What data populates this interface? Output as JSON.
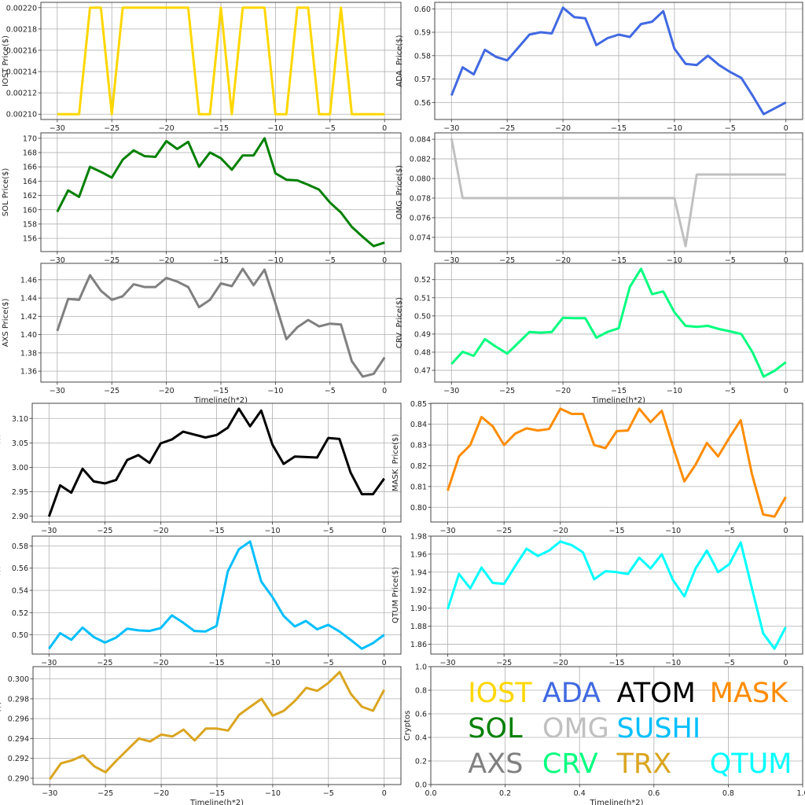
{
  "chart_data": [
    {
      "type": "line",
      "name": "IOST",
      "color": "#FFD700",
      "ylabel": "IOST Price($)",
      "xlabel": "",
      "x": [
        -30,
        -29,
        -28,
        -27,
        -26,
        -25,
        -24,
        -23,
        -22,
        -21,
        -20,
        -19,
        -18,
        -17,
        -16,
        -15,
        -14,
        -13,
        -12,
        -11,
        -10,
        -9,
        -8,
        -7,
        -6,
        -5,
        -4,
        -3,
        -2,
        -1,
        0
      ],
      "values": [
        0.0021,
        0.0021,
        0.0021,
        0.0022,
        0.0022,
        0.0021,
        0.0022,
        0.0022,
        0.0022,
        0.0022,
        0.0022,
        0.0022,
        0.0022,
        0.0021,
        0.0021,
        0.0022,
        0.0021,
        0.0022,
        0.0022,
        0.0022,
        0.0021,
        0.0021,
        0.0022,
        0.0022,
        0.0021,
        0.0021,
        0.0022,
        0.0021,
        0.0021,
        0.0021,
        0.0021
      ],
      "yticks": [
        0.0021,
        0.00212,
        0.00214,
        0.00216,
        0.00218,
        0.0022
      ],
      "ytick_labels": [
        "0.00210",
        "0.00212",
        "0.00214",
        "0.00216",
        "0.00218",
        "0.00220"
      ],
      "xticks": [
        -30,
        -25,
        -20,
        -15,
        -10,
        -5,
        0
      ],
      "xtick_labels": [
        "−30",
        "−25",
        "−20",
        "−15",
        "−10",
        "−5",
        "0"
      ],
      "grid": true
    },
    {
      "type": "line",
      "name": "ADA",
      "color": "#4169E1",
      "ylabel": "ADA  Price($)",
      "xlabel": "",
      "x": [
        -30,
        -29,
        -28,
        -27,
        -26,
        -25,
        -24,
        -23,
        -22,
        -21,
        -20,
        -19,
        -18,
        -17,
        -16,
        -15,
        -14,
        -13,
        -12,
        -11,
        -10,
        -9,
        -8,
        -7,
        -6,
        -5,
        -4,
        -3,
        -2,
        -1,
        0
      ],
      "values": [
        0.563,
        0.575,
        0.572,
        0.5825,
        0.5795,
        0.578,
        0.5835,
        0.589,
        0.59,
        0.5895,
        0.6005,
        0.5965,
        0.596,
        0.5845,
        0.5875,
        0.589,
        0.588,
        0.5935,
        0.5945,
        0.599,
        0.583,
        0.5765,
        0.576,
        0.58,
        0.576,
        0.573,
        0.5705,
        0.563,
        0.555,
        0.5575,
        0.56
      ],
      "yticks": [
        0.56,
        0.57,
        0.58,
        0.59,
        0.6
      ],
      "ytick_labels": [
        "0.56",
        "0.57",
        "0.58",
        "0.59",
        "0.60"
      ],
      "xticks": [
        -30,
        -25,
        -20,
        -15,
        -10,
        -5,
        0
      ],
      "xtick_labels": [
        "−30",
        "−25",
        "−20",
        "−15",
        "−10",
        "−5",
        "0"
      ],
      "grid": true
    },
    {
      "type": "line",
      "name": "SOL",
      "color": "#008000",
      "ylabel": "SOL Price($)",
      "xlabel": "",
      "x": [
        -30,
        -29,
        -28,
        -27,
        -26,
        -25,
        -24,
        -23,
        -22,
        -21,
        -20,
        -19,
        -18,
        -17,
        -16,
        -15,
        -14,
        -13,
        -12,
        -11,
        -10,
        -9,
        -8,
        -7,
        -6,
        -5,
        -4,
        -3,
        -2,
        -1,
        0
      ],
      "values": [
        159.7,
        162.7,
        161.8,
        166,
        165.3,
        164.5,
        167,
        168.3,
        167.5,
        167.4,
        169.6,
        168.5,
        169.5,
        166,
        168,
        167.2,
        165.6,
        167.6,
        167.6,
        170,
        165.1,
        164.2,
        164.1,
        163.5,
        162.8,
        161,
        159.6,
        157.6,
        156.2,
        154.9,
        155.4
      ],
      "yticks": [
        156,
        158,
        160,
        162,
        164,
        166,
        168,
        170
      ],
      "ytick_labels": [
        "156",
        "158",
        "160",
        "162",
        "164",
        "166",
        "168",
        "170"
      ],
      "xticks": [
        -30,
        -25,
        -20,
        -15,
        -10,
        -5,
        0
      ],
      "xtick_labels": [
        "−30",
        "−25",
        "−20",
        "−15",
        "−10",
        "−5",
        "0"
      ],
      "grid": true
    },
    {
      "type": "line",
      "name": "OMG",
      "color": "#C0C0C0",
      "ylabel": "OMG  Price($)",
      "xlabel": "",
      "x": [
        -30,
        -29,
        -28,
        -27,
        -26,
        -25,
        -24,
        -23,
        -22,
        -21,
        -20,
        -19,
        -18,
        -17,
        -16,
        -15,
        -14,
        -13,
        -12,
        -11,
        -10,
        -9,
        -8,
        -7,
        -6,
        -5,
        -4,
        -3,
        -2,
        -1,
        0
      ],
      "values": [
        0.0841,
        0.078,
        0.078,
        0.078,
        0.078,
        0.078,
        0.078,
        0.078,
        0.078,
        0.078,
        0.078,
        0.078,
        0.078,
        0.078,
        0.078,
        0.078,
        0.078,
        0.078,
        0.078,
        0.078,
        0.078,
        0.0731,
        0.0804,
        0.0804,
        0.0804,
        0.0804,
        0.0804,
        0.0804,
        0.0804,
        0.0804,
        0.0804
      ],
      "yticks": [
        0.074,
        0.076,
        0.078,
        0.08,
        0.082,
        0.084
      ],
      "ytick_labels": [
        "0.074",
        "0.076",
        "0.078",
        "0.080",
        "0.082",
        "0.084"
      ],
      "xticks": [
        -30,
        -25,
        -20,
        -15,
        -10,
        -5,
        0
      ],
      "xtick_labels": [
        "−30",
        "−25",
        "−20",
        "−15",
        "−10",
        "−5",
        "0"
      ],
      "grid": true
    },
    {
      "type": "line",
      "name": "AXS",
      "color": "#808080",
      "ylabel": "AXS Price($)",
      "xlabel": "Timeline(h*2)",
      "x": [
        -30,
        -29,
        -28,
        -27,
        -26,
        -25,
        -24,
        -23,
        -22,
        -21,
        -20,
        -19,
        -18,
        -17,
        -16,
        -15,
        -14,
        -13,
        -12,
        -11,
        -10,
        -9,
        -8,
        -7,
        -6,
        -5,
        -4,
        -3,
        -2,
        -1,
        0
      ],
      "values": [
        1.404,
        1.439,
        1.438,
        1.465,
        1.448,
        1.438,
        1.442,
        1.455,
        1.452,
        1.452,
        1.462,
        1.458,
        1.452,
        1.43,
        1.438,
        1.456,
        1.453,
        1.472,
        1.454,
        1.471,
        1.434,
        1.395,
        1.408,
        1.416,
        1.409,
        1.412,
        1.411,
        1.371,
        1.354,
        1.357,
        1.375
      ],
      "yticks": [
        1.36,
        1.38,
        1.4,
        1.42,
        1.44,
        1.46
      ],
      "ytick_labels": [
        "1.36",
        "1.38",
        "1.40",
        "1.42",
        "1.44",
        "1.46"
      ],
      "xticks": [
        -30,
        -25,
        -20,
        -15,
        -10,
        -5,
        0
      ],
      "xtick_labels": [
        "−30",
        "−25",
        "−20",
        "−15",
        "−10",
        "−5",
        "0"
      ],
      "grid": true
    },
    {
      "type": "line",
      "name": "CRV",
      "color": "#00FF7F",
      "ylabel": "CRV  Price($)",
      "xlabel": "Timeline(h*2)",
      "x": [
        -30,
        -29,
        -28,
        -27,
        -26,
        -25,
        -24,
        -23,
        -22,
        -21,
        -20,
        -19,
        -18,
        -17,
        -16,
        -15,
        -14,
        -13,
        -12,
        -11,
        -10,
        -9,
        -8,
        -7,
        -6,
        -5,
        -4,
        -3,
        -2,
        -1,
        0
      ],
      "values": [
        0.4735,
        0.4802,
        0.478,
        0.4872,
        0.483,
        0.4792,
        0.4852,
        0.4912,
        0.4908,
        0.4912,
        0.499,
        0.4987,
        0.4988,
        0.488,
        0.4912,
        0.4932,
        0.516,
        0.526,
        0.512,
        0.5135,
        0.502,
        0.4945,
        0.494,
        0.4945,
        0.4928,
        0.4915,
        0.49,
        0.48,
        0.4665,
        0.4698,
        0.4745
      ],
      "yticks": [
        0.47,
        0.48,
        0.49,
        0.5,
        0.51,
        0.52
      ],
      "ytick_labels": [
        "0.47",
        "0.48",
        "0.49",
        "0.50",
        "0.51",
        "0.52"
      ],
      "xticks": [
        -30,
        -25,
        -20,
        -15,
        -10,
        -5,
        0
      ],
      "xtick_labels": [
        "−30",
        "−25",
        "−20",
        "−15",
        "−10",
        "−5",
        "0"
      ],
      "grid": true
    },
    {
      "type": "line",
      "name": "ATOM",
      "color": "#000000",
      "ylabel": "ATOM  Price($)",
      "xlabel": "",
      "x": [
        -30,
        -29,
        -28,
        -27,
        -26,
        -25,
        -24,
        -23,
        -22,
        -21,
        -20,
        -19,
        -18,
        -17,
        -16,
        -15,
        -14,
        -13,
        -12,
        -11,
        -10,
        -9,
        -8,
        -7,
        -6,
        -5,
        -4,
        -3,
        -2,
        -1,
        0
      ],
      "values": [
        2.899,
        2.963,
        2.948,
        2.997,
        2.971,
        2.967,
        2.974,
        3.015,
        3.025,
        3.009,
        3.049,
        3.057,
        3.073,
        3.067,
        3.061,
        3.066,
        3.081,
        3.12,
        3.084,
        3.116,
        3.046,
        3.007,
        3.022,
        3.021,
        3.02,
        3.06,
        3.058,
        2.989,
        2.945,
        2.945,
        2.977
      ],
      "yticks": [
        2.9,
        2.95,
        3.0,
        3.05,
        3.1
      ],
      "ytick_labels": [
        "2.90",
        "2.95",
        "3.00",
        "3.05",
        "3.10"
      ],
      "xticks": [
        -30,
        -25,
        -20,
        -15,
        -10,
        -5,
        0
      ],
      "xtick_labels": [
        "−30",
        "−25",
        "−20",
        "−15",
        "−10",
        "−5",
        "0"
      ],
      "grid": true
    },
    {
      "type": "line",
      "name": "MASK",
      "color": "#FF8C00",
      "ylabel": "MASK  Price($)",
      "xlabel": "",
      "x": [
        -30,
        -29,
        -28,
        -27,
        -26,
        -25,
        -24,
        -23,
        -22,
        -21,
        -20,
        -19,
        -18,
        -17,
        -16,
        -15,
        -14,
        -13,
        -12,
        -11,
        -10,
        -9,
        -8,
        -7,
        -6,
        -5,
        -4,
        -3,
        -2,
        -1,
        0
      ],
      "values": [
        0.808,
        0.8245,
        0.83,
        0.8435,
        0.839,
        0.83,
        0.8355,
        0.838,
        0.837,
        0.8377,
        0.8475,
        0.845,
        0.845,
        0.83,
        0.8285,
        0.8367,
        0.837,
        0.8475,
        0.841,
        0.8465,
        0.829,
        0.8125,
        0.8205,
        0.831,
        0.8245,
        0.8335,
        0.842,
        0.816,
        0.7965,
        0.7955,
        0.805
      ],
      "yticks": [
        0.8,
        0.81,
        0.82,
        0.83,
        0.84,
        0.85
      ],
      "ytick_labels": [
        "0.80",
        "0.81",
        "0.82",
        "0.83",
        "0.84",
        "0.85"
      ],
      "xticks": [
        -30,
        -25,
        -20,
        -15,
        -10,
        -5,
        0
      ],
      "xtick_labels": [
        "−30",
        "−25",
        "−20",
        "−15",
        "−10",
        "−5",
        "0"
      ],
      "grid": true
    },
    {
      "type": "line",
      "name": "SUSHI",
      "color": "#00BFFF",
      "ylabel": "SUSHI  Price($)",
      "xlabel": "",
      "x": [
        -30,
        -29,
        -28,
        -27,
        -26,
        -25,
        -24,
        -23,
        -22,
        -21,
        -20,
        -19,
        -18,
        -17,
        -16,
        -15,
        -14,
        -13,
        -12,
        -11,
        -10,
        -9,
        -8,
        -7,
        -6,
        -5,
        -4,
        -3,
        -2,
        -1,
        0
      ],
      "values": [
        0.4875,
        0.5015,
        0.4955,
        0.5065,
        0.498,
        0.493,
        0.4975,
        0.5055,
        0.504,
        0.5035,
        0.506,
        0.5175,
        0.511,
        0.5035,
        0.503,
        0.508,
        0.557,
        0.577,
        0.584,
        0.548,
        0.534,
        0.517,
        0.5075,
        0.5125,
        0.505,
        0.509,
        0.503,
        0.4955,
        0.4875,
        0.4925,
        0.5
      ],
      "yticks": [
        0.5,
        0.52,
        0.54,
        0.56,
        0.58
      ],
      "ytick_labels": [
        "0.50",
        "0.52",
        "0.54",
        "0.56",
        "0.58"
      ],
      "xticks": [
        -30,
        -25,
        -20,
        -15,
        -10,
        -5,
        0
      ],
      "xtick_labels": [
        "−30",
        "−25",
        "−20",
        "−15",
        "−10",
        "−5",
        "0"
      ],
      "grid": true
    },
    {
      "type": "line",
      "name": "QTUM",
      "color": "#00FFFF",
      "ylabel": "QTUM Price($)",
      "xlabel": "",
      "x": [
        -30,
        -29,
        -28,
        -27,
        -26,
        -25,
        -24,
        -23,
        -22,
        -21,
        -20,
        -19,
        -18,
        -17,
        -16,
        -15,
        -14,
        -13,
        -12,
        -11,
        -10,
        -9,
        -8,
        -7,
        -6,
        -5,
        -4,
        -3,
        -2,
        -1,
        0
      ],
      "values": [
        1.899,
        1.938,
        1.922,
        1.945,
        1.928,
        1.927,
        1.947,
        1.966,
        1.958,
        1.964,
        1.974,
        1.97,
        1.962,
        1.932,
        1.941,
        1.94,
        1.938,
        1.956,
        1.944,
        1.96,
        1.931,
        1.913,
        1.944,
        1.964,
        1.94,
        1.949,
        1.973,
        1.922,
        1.872,
        1.855,
        1.879
      ],
      "yticks": [
        1.86,
        1.88,
        1.9,
        1.92,
        1.94,
        1.96,
        1.98
      ],
      "ytick_labels": [
        "1.86",
        "1.88",
        "1.90",
        "1.92",
        "1.94",
        "1.96",
        "1.98"
      ],
      "xticks": [
        -30,
        -25,
        -20,
        -15,
        -10,
        -5,
        0
      ],
      "xtick_labels": [
        "−30",
        "−25",
        "−20",
        "−15",
        "−10",
        "−5",
        "0"
      ],
      "grid": true
    },
    {
      "type": "line",
      "name": "TRX",
      "color": "#DAA520",
      "ylabel": "TRX Price($)",
      "xlabel": "Timeline(h*2)",
      "x": [
        -30,
        -29,
        -28,
        -27,
        -26,
        -25,
        -24,
        -23,
        -22,
        -21,
        -20,
        -19,
        -18,
        -17,
        -16,
        -15,
        -14,
        -13,
        -12,
        -11,
        -10,
        -9,
        -8,
        -7,
        -6,
        -5,
        -4,
        -3,
        -2,
        -1,
        0
      ],
      "values": [
        0.2899,
        0.2915,
        0.2918,
        0.2923,
        0.2912,
        0.2906,
        0.2918,
        0.2929,
        0.294,
        0.2937,
        0.2944,
        0.2942,
        0.2949,
        0.2938,
        0.295,
        0.295,
        0.2948,
        0.2964,
        0.2972,
        0.298,
        0.2963,
        0.2968,
        0.2978,
        0.2991,
        0.2988,
        0.2996,
        0.3007,
        0.2985,
        0.2972,
        0.2968,
        0.2989
      ],
      "yticks": [
        0.29,
        0.292,
        0.294,
        0.296,
        0.298,
        0.3
      ],
      "ytick_labels": [
        "0.290",
        "0.292",
        "0.294",
        "0.296",
        "0.298",
        "0.300"
      ],
      "xticks": [
        -30,
        -25,
        -20,
        -15,
        -10,
        -5,
        0
      ],
      "xtick_labels": [
        "−30",
        "−25",
        "−20",
        "−15",
        "−10",
        "−5",
        "0"
      ],
      "grid": true
    }
  ],
  "legend_panel": {
    "xlabel": "Timeline(h*2)",
    "ylabel": "Cryptos",
    "xticks": [
      0,
      0.2,
      0.4,
      0.6,
      0.8,
      1.0
    ],
    "xtick_labels": [
      "0.0",
      "0.2",
      "0.4",
      "0.6",
      "0.8",
      "1.0"
    ],
    "yticks": [
      0,
      0.2,
      0.4,
      0.6,
      0.8,
      1.0
    ],
    "ytick_labels": [
      "0.0",
      "0.2",
      "0.4",
      "0.6",
      "0.8",
      "1.0"
    ],
    "entries": [
      {
        "label": "IOST",
        "color": "#FFD700"
      },
      {
        "label": "ADA",
        "color": "#4169E1"
      },
      {
        "label": "ATOM",
        "color": "#000000"
      },
      {
        "label": "MASK",
        "color": "#FF8C00"
      },
      {
        "label": "SOL",
        "color": "#008000"
      },
      {
        "label": "OMG",
        "color": "#C0C0C0"
      },
      {
        "label": "SUSHI",
        "color": "#00BFFF"
      },
      {
        "label": "AXS",
        "color": "#808080"
      },
      {
        "label": "CRV",
        "color": "#00FF7F"
      },
      {
        "label": "TRX",
        "color": "#DAA520"
      },
      {
        "label": "QTUM",
        "color": "#00FFFF"
      }
    ]
  }
}
